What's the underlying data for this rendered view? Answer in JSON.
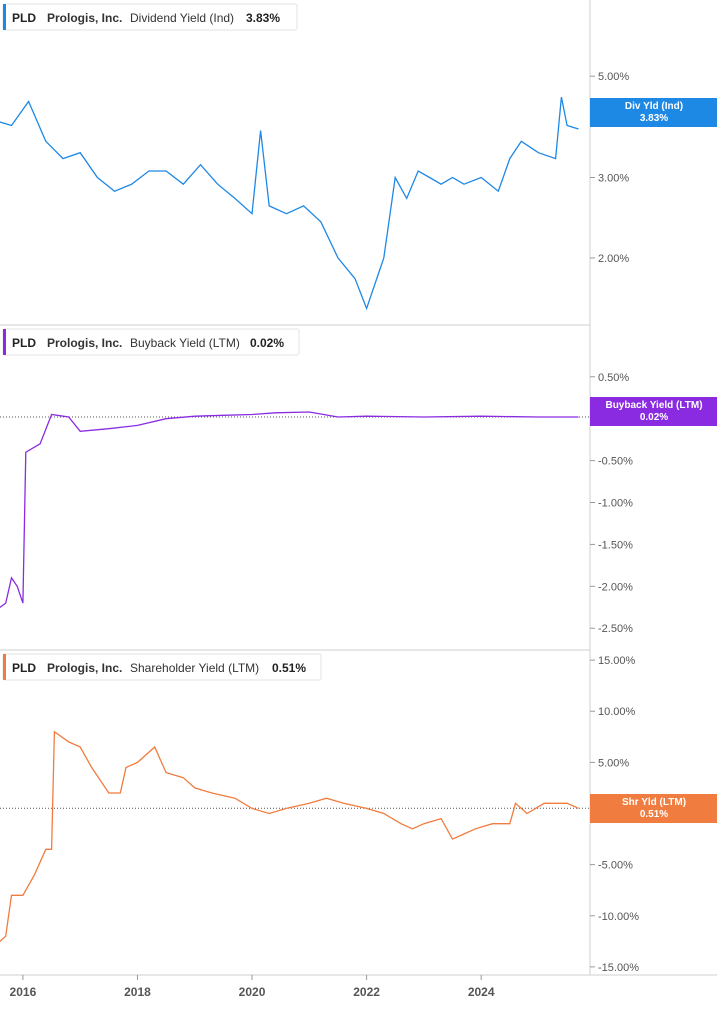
{
  "colors": {
    "dividend": "#1e88e5",
    "buyback": "#8a2be2",
    "shareholder": "#f07c3f",
    "axis_text": "#555555",
    "divider": "#cfcfcf"
  },
  "chart_data": [
    {
      "type": "line",
      "ticker": "PLD",
      "company": "Prologis, Inc.",
      "metric": "Dividend Yield (Ind)",
      "current_value": "3.83%",
      "tag_line1": "Div Yld (Ind)",
      "tag_line2": "3.83%",
      "y_ticks": [
        "5.00%",
        "3.00%",
        "2.00%"
      ],
      "y_tick_values": [
        5.0,
        3.0,
        2.0
      ],
      "ylim": [
        1.5,
        6.0
      ],
      "y_scale": "log",
      "series": [
        {
          "x": [
            2015.5,
            2015.8,
            2016.1,
            2016.4,
            2016.7,
            2017.0,
            2017.3,
            2017.6,
            2017.9,
            2018.2,
            2018.5,
            2018.8,
            2019.1,
            2019.4,
            2019.7,
            2020.0,
            2020.15,
            2020.3,
            2020.6,
            2020.9,
            2021.2,
            2021.5,
            2021.8,
            2022.0,
            2022.3,
            2022.5,
            2022.7,
            2022.9,
            2023.1,
            2023.3,
            2023.5,
            2023.7,
            2024.0,
            2024.3,
            2024.5,
            2024.7,
            2025.0,
            2025.3,
            2025.4,
            2025.5,
            2025.7
          ],
          "values": [
            4.0,
            3.9,
            4.4,
            3.6,
            3.3,
            3.4,
            3.0,
            2.8,
            2.9,
            3.1,
            3.1,
            2.9,
            3.2,
            2.9,
            2.7,
            2.5,
            3.8,
            2.6,
            2.5,
            2.6,
            2.4,
            2.0,
            1.8,
            1.55,
            2.0,
            3.0,
            2.7,
            3.1,
            3.0,
            2.9,
            3.0,
            2.9,
            3.0,
            2.8,
            3.3,
            3.6,
            3.4,
            3.3,
            4.5,
            3.9,
            3.83
          ]
        }
      ]
    },
    {
      "type": "line",
      "ticker": "PLD",
      "company": "Prologis, Inc.",
      "metric": "Buyback Yield (LTM)",
      "current_value": "0.02%",
      "tag_line1": "Buyback Yield (LTM)",
      "tag_line2": "0.02%",
      "y_ticks": [
        "0.50%",
        "-0.50%",
        "-1.00%",
        "-1.50%",
        "-2.00%",
        "-2.50%"
      ],
      "y_tick_values": [
        0.5,
        -0.5,
        -1.0,
        -1.5,
        -2.0,
        -2.5
      ],
      "ylim": [
        -2.7,
        0.7
      ],
      "series": [
        {
          "x": [
            2015.5,
            2015.7,
            2015.8,
            2015.9,
            2016.0,
            2016.05,
            2016.3,
            2016.5,
            2016.8,
            2017.0,
            2017.5,
            2018.0,
            2018.5,
            2019.0,
            2019.5,
            2020.0,
            2020.4,
            2021.0,
            2021.5,
            2022.0,
            2023.0,
            2024.0,
            2025.0,
            2025.7
          ],
          "values": [
            -2.3,
            -2.2,
            -1.9,
            -2.0,
            -2.2,
            -0.4,
            -0.3,
            0.05,
            0.02,
            -0.15,
            -0.12,
            -0.08,
            0.0,
            0.03,
            0.04,
            0.05,
            0.07,
            0.08,
            0.02,
            0.03,
            0.02,
            0.03,
            0.02,
            0.02
          ]
        }
      ]
    },
    {
      "type": "line",
      "ticker": "PLD",
      "company": "Prologis, Inc.",
      "metric": "Shareholder Yield (LTM)",
      "current_value": "0.51%",
      "tag_line1": "Shr Yld (LTM)",
      "tag_line2": "0.51%",
      "y_ticks": [
        "15.00%",
        "10.00%",
        "5.00%",
        "0.00%",
        "-5.00%",
        "-10.00%",
        "-15.00%"
      ],
      "y_tick_values": [
        15,
        10,
        5,
        0,
        -5,
        -10,
        -15
      ],
      "ylim": [
        -15.5,
        15.5
      ],
      "series": [
        {
          "x": [
            2015.5,
            2015.7,
            2015.8,
            2016.0,
            2016.2,
            2016.4,
            2016.5,
            2016.55,
            2016.8,
            2017.0,
            2017.2,
            2017.5,
            2017.7,
            2017.8,
            2018.0,
            2018.3,
            2018.5,
            2018.8,
            2019.0,
            2019.3,
            2019.7,
            2020.0,
            2020.3,
            2020.6,
            2021.0,
            2021.3,
            2021.6,
            2022.0,
            2022.3,
            2022.6,
            2022.8,
            2023.0,
            2023.3,
            2023.5,
            2023.7,
            2023.9,
            2024.2,
            2024.5,
            2024.6,
            2024.8,
            2025.1,
            2025.5,
            2025.7
          ],
          "values": [
            -13.0,
            -12.0,
            -8.0,
            -8.0,
            -6.0,
            -3.5,
            -3.5,
            8.0,
            7.0,
            6.5,
            4.5,
            2.0,
            2.0,
            4.5,
            5.0,
            6.5,
            4.0,
            3.5,
            2.5,
            2.0,
            1.5,
            0.5,
            0.0,
            0.5,
            1.0,
            1.5,
            1.0,
            0.5,
            0.0,
            -1.0,
            -1.5,
            -1.0,
            -0.5,
            -2.5,
            -2.0,
            -1.5,
            -1.0,
            -1.0,
            1.0,
            0.0,
            1.0,
            1.0,
            0.51
          ]
        }
      ]
    }
  ],
  "x_axis": {
    "ticks": [
      "2016",
      "2018",
      "2020",
      "2022",
      "2024"
    ],
    "tick_values": [
      2016,
      2018,
      2020,
      2022,
      2024
    ],
    "xlim": [
      2015.6,
      2025.9
    ]
  }
}
